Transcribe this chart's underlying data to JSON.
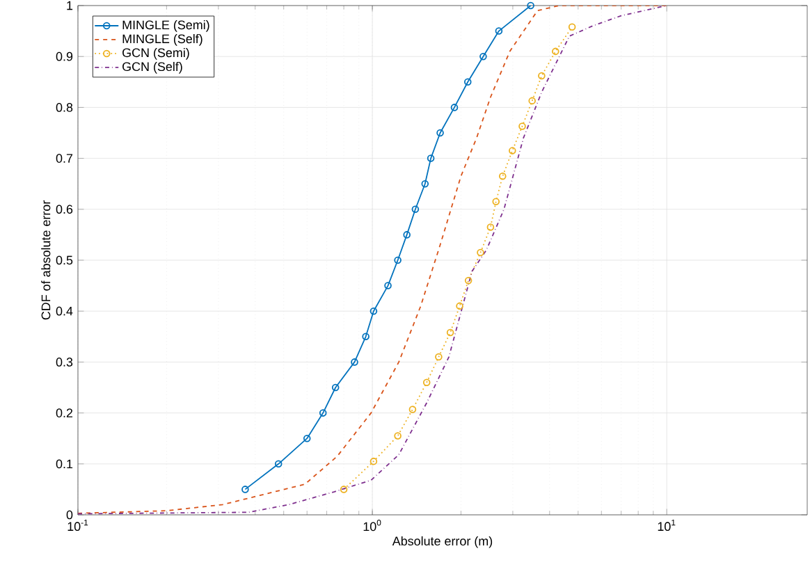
{
  "chart_data": {
    "type": "line",
    "xlabel": "Absolute error (m)",
    "ylabel": "CDF of absolute error",
    "log": "x",
    "grid": true,
    "legend": "top left",
    "xlim": [
      0.1,
      30
    ],
    "ylim": [
      0,
      1
    ],
    "xticks": [
      {
        "value": 0.1,
        "label": "10$^{-1}$"
      },
      {
        "value": 1,
        "label": "10$^{0}$"
      },
      {
        "value": 10,
        "label": "10$^{1}$"
      }
    ],
    "yticks": [
      0,
      0.1,
      0.2,
      0.3,
      0.4,
      0.5,
      0.6,
      0.7,
      0.8,
      0.9,
      1
    ],
    "series": [
      {
        "name": "MINGLE (Semi)",
        "color": "#0072bd",
        "line_style": "solid",
        "marker": "circle",
        "x": [
          0.37,
          0.48,
          0.6,
          0.68,
          0.75,
          0.87,
          0.95,
          1.01,
          1.13,
          1.22,
          1.31,
          1.4,
          1.51,
          1.58,
          1.7,
          1.9,
          2.11,
          2.38,
          2.69,
          3.45
        ],
        "values": [
          0.05,
          0.1,
          0.15,
          0.2,
          0.25,
          0.3,
          0.35,
          0.4,
          0.45,
          0.5,
          0.55,
          0.6,
          0.65,
          0.7,
          0.75,
          0.8,
          0.85,
          0.9,
          0.95,
          1.0
        ]
      },
      {
        "name": "MINGLE (Self)",
        "color": "#d95319",
        "line_style": "dashed",
        "marker": "none",
        "x": [
          0.1,
          0.2,
          0.31,
          0.59,
          0.76,
          0.99,
          1.23,
          1.46,
          1.7,
          2.0,
          2.26,
          2.52,
          2.93,
          3.64,
          4.3,
          10
        ],
        "values": [
          0.003,
          0.008,
          0.02,
          0.06,
          0.115,
          0.2,
          0.3,
          0.41,
          0.53,
          0.665,
          0.74,
          0.82,
          0.91,
          0.99,
          1.0,
          1.0
        ]
      },
      {
        "name": "GCN (Semi)",
        "color": "#edb120",
        "line_style": "dotted",
        "marker": "circle",
        "x": [
          0.8,
          1.01,
          1.22,
          1.37,
          1.53,
          1.68,
          1.84,
          1.98,
          2.12,
          2.33,
          2.52,
          2.63,
          2.77,
          2.99,
          3.23,
          3.49,
          3.76,
          4.19,
          4.77
        ],
        "values": [
          0.05,
          0.105,
          0.155,
          0.207,
          0.26,
          0.31,
          0.358,
          0.41,
          0.46,
          0.515,
          0.565,
          0.615,
          0.665,
          0.715,
          0.763,
          0.813,
          0.862,
          0.91,
          0.958
        ]
      },
      {
        "name": "GCN (Self)",
        "color": "#7e2f8e",
        "line_style": "dashdot",
        "marker": "none",
        "x": [
          0.1,
          0.38,
          0.52,
          0.74,
          0.99,
          1.23,
          1.53,
          1.82,
          2.18,
          2.44,
          2.8,
          3.26,
          3.76,
          4.67,
          5.6,
          7,
          10
        ],
        "values": [
          0.002,
          0.005,
          0.02,
          0.045,
          0.068,
          0.118,
          0.22,
          0.31,
          0.478,
          0.52,
          0.6,
          0.74,
          0.83,
          0.94,
          0.96,
          0.98,
          1.0
        ]
      }
    ]
  }
}
